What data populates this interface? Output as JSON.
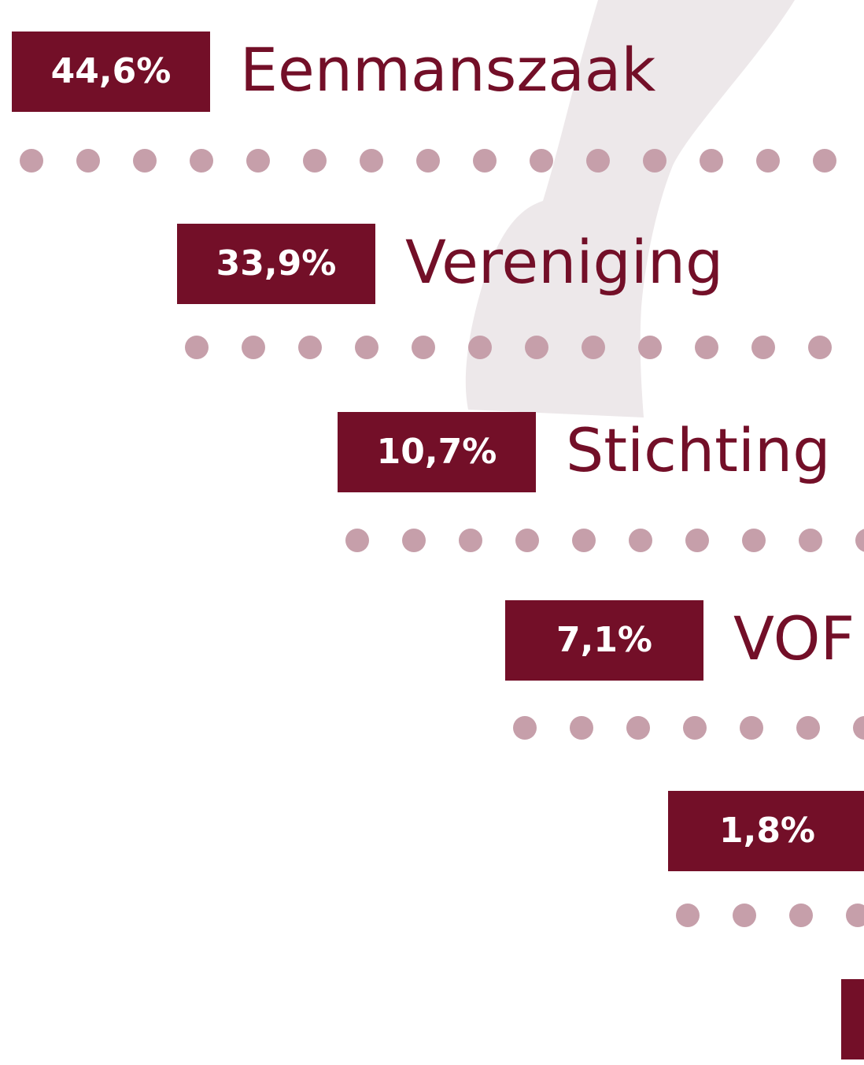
{
  "items": [
    {
      "percent": "44,6%",
      "name": "Eenmanszaak"
    },
    {
      "percent": "33,9%",
      "name": "Vereniging"
    },
    {
      "percent": "10,7%",
      "name": "Stichting"
    },
    {
      "percent": "7,1%",
      "name": "VOF"
    },
    {
      "percent": "1,8%",
      "name": ""
    }
  ]
}
